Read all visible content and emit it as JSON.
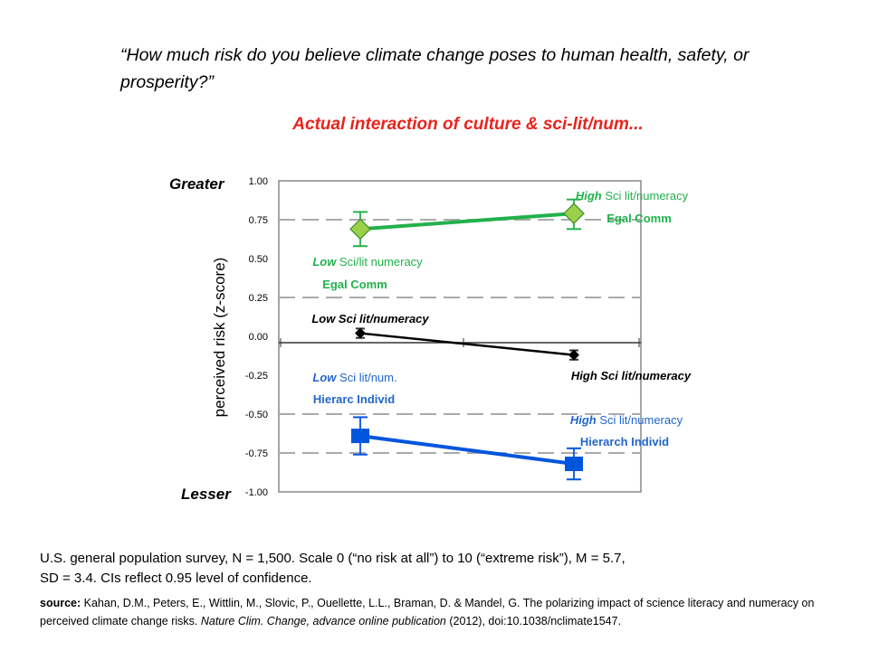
{
  "question_prefix": "“How much risk do you believe climate change poses to human health, safety, or prosperity?”",
  "subtitle": "Actual interaction of culture & sci-lit/num...",
  "notes": {
    "line1": "U.S. general population survey, N = 1,500.  Scale 0 (“no risk at all”) to 10 (“extreme risk”), M = 5.7,",
    "line2": "SD = 3.4. CIs reflect 0.95 level of confidence."
  },
  "source": {
    "label": "source:",
    "text1": " Kahan, D.M., Peters, E., Wittlin, M., Slovic, P., Ouellette, L.L., Braman, D. & Mandel, G. The polarizing impact of science literacy and numeracy on perceived climate change risks. ",
    "journal": "Nature Clim. Change,  advance online publication",
    "text2": " (2012), doi:10.1038/nclimate1547."
  },
  "chart_data": {
    "type": "line",
    "ylabel": "perceived risk (z-score)",
    "ylim": [
      -1.0,
      1.0
    ],
    "yticks": [
      "1.00",
      "0.75",
      "0.50",
      "0.25",
      "0.00",
      "-0.25",
      "-0.50",
      "-0.75",
      "-1.00"
    ],
    "ytick_values": [
      1.0,
      0.75,
      0.5,
      0.25,
      0.0,
      -0.25,
      -0.5,
      -0.75,
      -1.0
    ],
    "dashed_gridlines": [
      0.75,
      0.25,
      -0.5,
      -0.75
    ],
    "y_end_labels": {
      "top": "Greater",
      "bottom": "Lesser"
    },
    "x": [
      "Low Sci lit/numeracy",
      "High Sci lit/numeracy"
    ],
    "series": [
      {
        "color": "#22b14c",
        "marker": "diamond",
        "values": [
          0.69,
          0.79
        ],
        "ci_low": [
          0.58,
          0.69
        ],
        "ci_high": [
          0.8,
          0.88
        ]
      },
      {
        "color": "#000000",
        "marker": "small-diamond",
        "values": [
          0.02,
          -0.12
        ],
        "ci_low": [
          -0.01,
          -0.15
        ],
        "ci_high": [
          0.05,
          -0.09
        ]
      },
      {
        "color": "#0055dd",
        "marker": "square",
        "values": [
          -0.64,
          -0.82
        ],
        "ci_low": [
          -0.76,
          -0.92
        ],
        "ci_high": [
          -0.52,
          -0.72
        ]
      }
    ],
    "annotations": {
      "green_high": {
        "em": "High",
        "rest": " Sci lit/numeracy",
        "line2": "Egal Comm",
        "color": "#22b14c"
      },
      "green_low": {
        "em": "Low",
        "rest": "  Sci/lit numeracy",
        "line2": "Egal Comm",
        "color": "#22b14c"
      },
      "black_low": {
        "text": "Low Sci lit/numeracy",
        "color": "#000000"
      },
      "black_high": {
        "text": "High Sci lit/numeracy",
        "color": "#000000"
      },
      "blue_low": {
        "em": "Low",
        "rest": " Sci lit/num.",
        "line2": "Hierarc Individ",
        "color": "#2266cc"
      },
      "blue_high": {
        "em": "High",
        "rest": " Sci lit/numeracy",
        "line2": "Hierarch Individ",
        "color": "#2266cc"
      }
    }
  }
}
